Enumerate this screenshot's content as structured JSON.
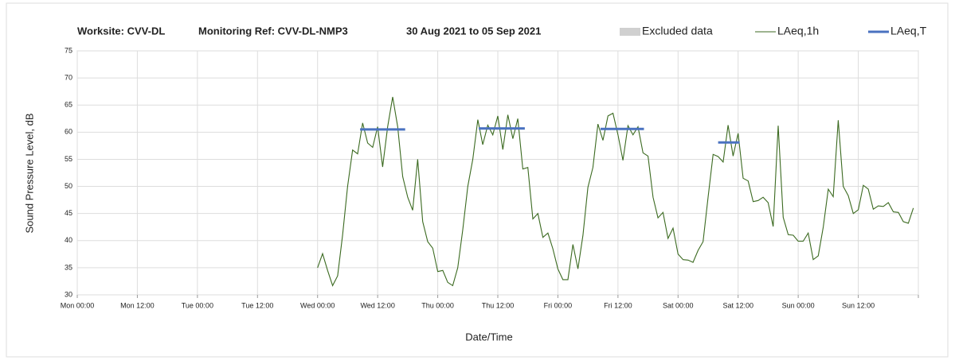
{
  "chart_data": {
    "type": "line",
    "title_parts": [
      "Worksite: CVV-DL",
      "Monitoring Ref: CVV-DL-NMP3",
      "30 Aug 2021 to 05 Sep 2021"
    ],
    "x_label": "Date/Time",
    "y_label": "Sound Pressure Level, dB",
    "xlim": [
      0,
      168
    ],
    "xticks": [
      {
        "value": 0,
        "label": "Mon 00:00"
      },
      {
        "value": 12,
        "label": "Mon 12:00"
      },
      {
        "value": 24,
        "label": "Tue 00:00"
      },
      {
        "value": 36,
        "label": "Tue 12:00"
      },
      {
        "value": 48,
        "label": "Wed 00:00"
      },
      {
        "value": 60,
        "label": "Wed 12:00"
      },
      {
        "value": 72,
        "label": "Thu 00:00"
      },
      {
        "value": 84,
        "label": "Thu 12:00"
      },
      {
        "value": 96,
        "label": "Fri 00:00"
      },
      {
        "value": 108,
        "label": "Fri 12:00"
      },
      {
        "value": 120,
        "label": "Sat 00:00"
      },
      {
        "value": 132,
        "label": "Sat 12:00"
      },
      {
        "value": 144,
        "label": "Sun 00:00"
      },
      {
        "value": 156,
        "label": "Sun 12:00"
      },
      {
        "value": 168,
        "label": ""
      }
    ],
    "ylim": [
      30,
      75
    ],
    "yticks": [
      30,
      35,
      40,
      45,
      50,
      55,
      60,
      65,
      70,
      75
    ],
    "grid": true,
    "legend": "top-right",
    "series": [
      {
        "name": "Excluded data",
        "color": "#d0d0d0",
        "style": "swatch",
        "x": [],
        "values": []
      },
      {
        "name": "LAeq,1h",
        "color": "#3b6a20",
        "style": "thin",
        "x": [
          48,
          49,
          50,
          51,
          52,
          53,
          54,
          55,
          56,
          57,
          58,
          59,
          60,
          61,
          62,
          63,
          64,
          65,
          66,
          67,
          68,
          69,
          70,
          71,
          72,
          73,
          74,
          75,
          76,
          77,
          78,
          79,
          80,
          81,
          82,
          83,
          84,
          85,
          86,
          87,
          88,
          89,
          90,
          91,
          92,
          93,
          94,
          95,
          96,
          97,
          98,
          99,
          100,
          101,
          102,
          103,
          104,
          105,
          106,
          107,
          108,
          109,
          110,
          111,
          112,
          113,
          114,
          115,
          116,
          117,
          118,
          119,
          120,
          121,
          122,
          123,
          124,
          125,
          126,
          127,
          128,
          129,
          130,
          131,
          132,
          133,
          134,
          135,
          136,
          137,
          138,
          139,
          140,
          141,
          142,
          143,
          144,
          145,
          146,
          147,
          148,
          149,
          150,
          151,
          152,
          153,
          154,
          155,
          156,
          157,
          158,
          159,
          160,
          161,
          162,
          163,
          164,
          165,
          166,
          167
        ],
        "values": [
          35,
          37.6,
          34.5,
          31.7,
          33.5,
          41,
          50,
          56.7,
          56,
          61.7,
          58,
          57.2,
          61,
          53.6,
          61,
          66.5,
          61,
          51.8,
          48,
          45.6,
          55,
          43.5,
          39.8,
          38.6,
          34.3,
          34.5,
          32.3,
          31.7,
          35,
          42,
          50,
          55,
          62.3,
          57.7,
          61.3,
          59.5,
          63,
          56.8,
          63.2,
          58.8,
          62.5,
          53.2,
          53.5,
          44,
          45,
          40.6,
          41.4,
          38.5,
          34.8,
          32.8,
          32.8,
          39.3,
          34.8,
          41,
          49.8,
          53.5,
          61.5,
          58.5,
          63,
          63.5,
          59.5,
          54.8,
          61.2,
          59.5,
          61,
          56.2,
          55.6,
          48,
          44.2,
          45.2,
          40.4,
          42.3,
          37.5,
          36.5,
          36.4,
          36,
          38.2,
          39.8,
          48,
          55.9,
          55.5,
          54.5,
          61.3,
          55.6,
          59.8,
          51.5,
          51,
          47.2,
          47.4,
          48,
          47,
          42.6,
          61.2,
          44.3,
          41.1,
          41,
          39.9,
          39.9,
          41.4,
          36.5,
          37.2,
          42.5,
          49.5,
          48.1,
          62.2,
          50,
          48.3,
          45,
          45.7,
          50.2,
          49.5,
          45.8,
          46.4,
          46.3,
          47,
          45.3,
          45.2,
          43.5,
          43.2,
          46
        ]
      },
      {
        "name": "LAeq,T",
        "color": "#4a72c0",
        "style": "thick",
        "x": [
          56.5,
          65.5,
          70,
          80.2,
          89.4,
          95,
          104.5,
          113.2,
          120,
          128,
          132.3
        ],
        "values": [
          60.5,
          60.5,
          null,
          60.7,
          60.7,
          null,
          60.6,
          60.6,
          null,
          58.1,
          58.1
        ]
      }
    ]
  }
}
